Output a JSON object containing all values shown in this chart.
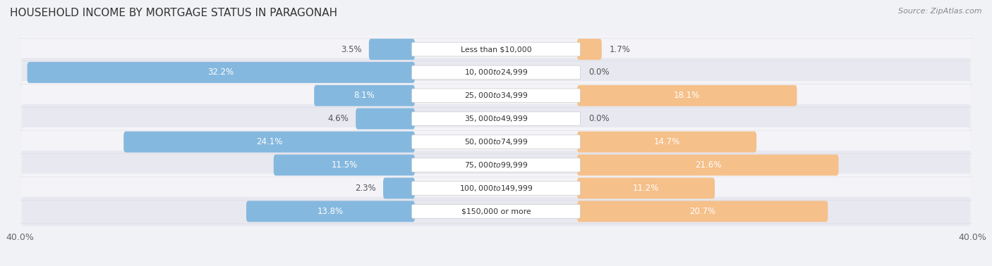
{
  "title": "HOUSEHOLD INCOME BY MORTGAGE STATUS IN PARAGONAH",
  "source": "Source: ZipAtlas.com",
  "categories": [
    "Less than $10,000",
    "$10,000 to $24,999",
    "$25,000 to $34,999",
    "$35,000 to $49,999",
    "$50,000 to $74,999",
    "$75,000 to $99,999",
    "$100,000 to $149,999",
    "$150,000 or more"
  ],
  "without_mortgage": [
    3.5,
    32.2,
    8.1,
    4.6,
    24.1,
    11.5,
    2.3,
    13.8
  ],
  "with_mortgage": [
    1.7,
    0.0,
    18.1,
    0.0,
    14.7,
    21.6,
    11.2,
    20.7
  ],
  "without_mortgage_color": "#85b8de",
  "with_mortgage_color": "#f5c08a",
  "xlim": 40.0,
  "bg_color": "#f0f2f5",
  "row_even_color": "#f4f4f8",
  "row_odd_color": "#e8e8f0",
  "label_fontsize": 8.5,
  "title_fontsize": 11
}
